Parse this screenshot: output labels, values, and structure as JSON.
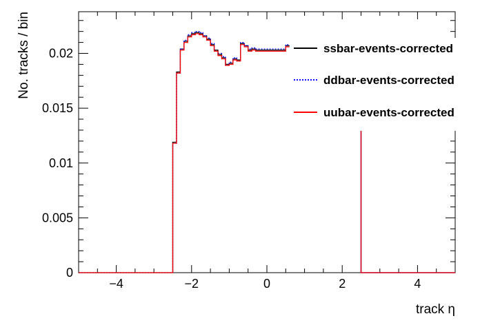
{
  "chart_data": {
    "type": "histogram-step",
    "xlabel": "track η",
    "ylabel": "No. tracks / bin",
    "xlim": [
      -5,
      5
    ],
    "ylim": [
      0,
      0.0238
    ],
    "xticks": [
      -4,
      -2,
      0,
      2,
      4
    ],
    "xtick_labels": [
      "−4",
      "−2",
      "0",
      "2",
      "4"
    ],
    "yticks": [
      0,
      0.005,
      0.01,
      0.015,
      0.02
    ],
    "ytick_labels": [
      "0",
      "0.005",
      "0.01",
      "0.015",
      "0.02"
    ],
    "bin_edges_range": [
      -5,
      5
    ],
    "bin_width": 0.1,
    "visible_x_range": [
      -5,
      0.6
    ],
    "legend_position": "top-right",
    "series": [
      {
        "name": "ssbar-events-corrected",
        "color": "#000000",
        "style": "solid",
        "values": [
          0,
          0,
          0,
          0,
          0,
          0,
          0,
          0,
          0,
          0,
          0,
          0,
          0,
          0,
          0,
          0,
          0,
          0,
          0,
          0,
          0,
          0,
          0,
          0,
          0,
          0.0119,
          0.0183,
          0.0204,
          0.0211,
          0.0216,
          0.0218,
          0.0219,
          0.0218,
          0.0216,
          0.0213,
          0.0208,
          0.0203,
          0.0199,
          0.0196,
          0.019,
          0.0191,
          0.0195,
          0.0194,
          0.0209,
          0.0207,
          0.0203,
          0.0204,
          0.0203,
          0.0203,
          0.0203,
          0.0203,
          0.0203,
          0.0203,
          0.0203,
          0.0203,
          0.0207
        ]
      },
      {
        "name": "ddbar-events-corrected",
        "color": "#0000ff",
        "style": "dotted",
        "values": [
          0,
          0,
          0,
          0,
          0,
          0,
          0,
          0,
          0,
          0,
          0,
          0,
          0,
          0,
          0,
          0,
          0,
          0,
          0,
          0,
          0,
          0,
          0,
          0,
          0,
          0.0118,
          0.0182,
          0.0204,
          0.0212,
          0.0217,
          0.0219,
          0.022,
          0.0219,
          0.0216,
          0.0214,
          0.0209,
          0.0202,
          0.02,
          0.0197,
          0.0189,
          0.0192,
          0.0196,
          0.0193,
          0.021,
          0.0207,
          0.0204,
          0.0205,
          0.0204,
          0.0204,
          0.0204,
          0.0204,
          0.0204,
          0.0204,
          0.0204,
          0.0204,
          0.0208
        ]
      },
      {
        "name": "uubar-events-corrected",
        "color": "#ff0000",
        "style": "solid",
        "values": [
          0,
          0,
          0,
          0,
          0,
          0,
          0,
          0,
          0,
          0,
          0,
          0,
          0,
          0,
          0,
          0,
          0,
          0,
          0,
          0,
          0,
          0,
          0,
          0,
          0,
          0.0118,
          0.0182,
          0.0203,
          0.021,
          0.0215,
          0.0217,
          0.0218,
          0.0217,
          0.0215,
          0.0212,
          0.0207,
          0.0202,
          0.0198,
          0.0195,
          0.0189,
          0.019,
          0.0194,
          0.0193,
          0.0208,
          0.0206,
          0.0202,
          0.0203,
          0.0202,
          0.0202,
          0.0202,
          0.0202,
          0.0202,
          0.0202,
          0.0202,
          0.0202,
          0.0206
        ]
      }
    ],
    "right_segment": {
      "x": [
        2.4,
        2.5,
        5.0
      ],
      "values": [
        0.0135,
        0.0,
        0.0
      ]
    }
  }
}
